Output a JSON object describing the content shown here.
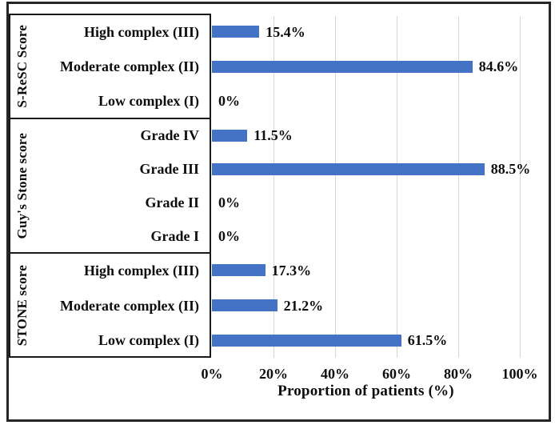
{
  "chart_data": {
    "type": "bar",
    "orientation": "horizontal",
    "title": "",
    "xlabel": "Proportion of patients (%)",
    "ylabel": "",
    "xlim": [
      0,
      100
    ],
    "grid": true,
    "x_tick_values": [
      0,
      20,
      40,
      60,
      80,
      100
    ],
    "x_tick_labels": [
      "0%",
      "20%",
      "40%",
      "60%",
      "80%",
      "100%"
    ],
    "bar_color": "#4472C4",
    "gridline_color": "#D6D6D6",
    "border_color": "#1A1A1A",
    "groups": [
      {
        "name": "S-ReSC Score",
        "categories": [
          "High complex (III)",
          "Moderate complex (II)",
          "Low complex (I)"
        ],
        "values": [
          15.4,
          84.6,
          0
        ],
        "value_labels": [
          "15.4%",
          "84.6%",
          "0%"
        ]
      },
      {
        "name": "Guy's Stone score",
        "categories": [
          "Grade IV",
          "Grade III",
          "Grade II",
          "Grade I"
        ],
        "values": [
          11.5,
          88.5,
          0,
          0
        ],
        "value_labels": [
          "11.5%",
          "88.5%",
          "0%",
          "0%"
        ]
      },
      {
        "name": "STONE score",
        "categories": [
          "High complex (III)",
          "Moderate complex (II)",
          "Low complex (I)"
        ],
        "values": [
          17.3,
          21.2,
          61.5
        ],
        "value_labels": [
          "17.3%",
          "21.2%",
          "61.5%"
        ]
      }
    ]
  }
}
